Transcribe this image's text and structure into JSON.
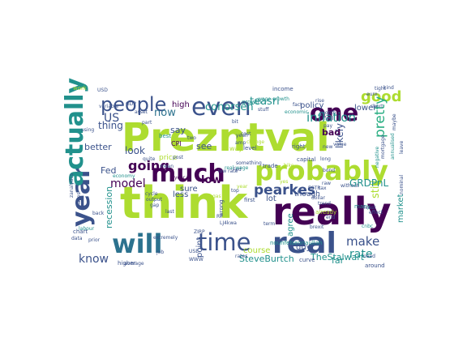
{
  "palette": {
    "dark_purple": "#440154",
    "indigo": "#3b528b",
    "slate_blue": "#2c728e",
    "teal": "#21918c",
    "green_teal": "#27ad81",
    "green": "#5ec962",
    "lime": "#addc30",
    "yellow": "#fde725"
  },
  "words": [
    {
      "text": "Prezntval",
      "color": "lime"
    },
    {
      "text": "think",
      "color": "lime"
    },
    {
      "text": "really",
      "color": "dark_purple"
    },
    {
      "text": "will",
      "color": "slate_blue"
    },
    {
      "text": "real",
      "color": "indigo"
    },
    {
      "text": "time",
      "color": "indigo"
    },
    {
      "text": "probably",
      "color": "lime"
    },
    {
      "text": "much",
      "color": "dark_purple"
    },
    {
      "text": "year",
      "color": "indigo"
    },
    {
      "text": "actually",
      "color": "teal"
    },
    {
      "text": "even",
      "color": "indigo"
    },
    {
      "text": "one",
      "color": "dark_purple"
    },
    {
      "text": "people",
      "color": "indigo"
    },
    {
      "text": "good",
      "color": "lime"
    },
    {
      "text": "pearkes",
      "color": "indigo"
    },
    {
      "text": "going",
      "color": "dark_purple"
    },
    {
      "text": "pretty",
      "color": "green_teal"
    },
    {
      "text": "inflation",
      "color": "teal"
    },
    {
      "text": "teasri",
      "color": "teal"
    },
    {
      "text": "conorsen",
      "color": "teal"
    },
    {
      "text": "model",
      "color": "dark_purple"
    },
    {
      "text": "low",
      "color": "dark_purple"
    },
    {
      "text": "make",
      "color": "indigo"
    },
    {
      "text": "rate",
      "color": "teal"
    },
    {
      "text": "know",
      "color": "indigo"
    },
    {
      "text": "still",
      "color": "lime"
    },
    {
      "text": "GRDPnL",
      "color": "teal"
    },
    {
      "text": "now",
      "color": "slate_blue"
    },
    {
      "text": "US",
      "color": "indigo"
    },
    {
      "text": "thing",
      "color": "indigo"
    },
    {
      "text": "look",
      "color": "indigo"
    },
    {
      "text": "likely",
      "color": "indigo"
    },
    {
      "text": "SteveBurtch",
      "color": "teal"
    },
    {
      "text": "TheStalwart",
      "color": "teal"
    },
    {
      "text": "recession",
      "color": "teal"
    },
    {
      "text": "lower",
      "color": "indigo"
    },
    {
      "text": "policy",
      "color": "indigo"
    },
    {
      "text": "market",
      "color": "teal"
    },
    {
      "text": "bad",
      "color": "dark_purple"
    },
    {
      "text": "say",
      "color": "indigo"
    },
    {
      "text": "see",
      "color": "indigo"
    },
    {
      "text": "sure",
      "color": "indigo"
    },
    {
      "text": "less",
      "color": "indigo"
    },
    {
      "text": "better",
      "color": "indigo"
    },
    {
      "text": "high",
      "color": "dark_purple"
    },
    {
      "text": "Fed",
      "color": "indigo"
    },
    {
      "text": "lot",
      "color": "indigo"
    },
    {
      "text": "course",
      "color": "lime"
    },
    {
      "text": "far",
      "color": "teal"
    },
    {
      "text": "point",
      "color": "indigo"
    },
    {
      "text": "price",
      "color": "lime"
    },
    {
      "text": "agree",
      "color": "teal"
    },
    {
      "text": "though",
      "color": "indigo"
    },
    {
      "text": "around",
      "color": "indigo"
    },
    {
      "text": "CPI",
      "color": "dark_purple"
    },
    {
      "text": "guy",
      "color": "indigo"
    },
    {
      "text": "growth",
      "color": "teal"
    },
    {
      "text": "trade",
      "color": "indigo"
    },
    {
      "text": "wage growth",
      "color": "teal"
    },
    {
      "text": "economic",
      "color": "teal"
    },
    {
      "text": "income",
      "color": "indigo"
    },
    {
      "text": "economy",
      "color": "teal"
    },
    {
      "text": "way",
      "color": "lime"
    },
    {
      "text": "best",
      "color": "teal"
    },
    {
      "text": "level",
      "color": "indigo"
    },
    {
      "text": "right",
      "color": "indigo"
    },
    {
      "text": "capital",
      "color": "indigo"
    },
    {
      "text": "already",
      "color": "lime"
    },
    {
      "text": "work",
      "color": "lime"
    },
    {
      "text": "USD",
      "color": "indigo"
    },
    {
      "text": "GDP",
      "color": "indigo"
    },
    {
      "text": "asset",
      "color": "indigo"
    },
    {
      "text": "first",
      "color": "indigo"
    },
    {
      "text": "without",
      "color": "indigo"
    },
    {
      "text": "higher",
      "color": "indigo"
    },
    {
      "text": "average",
      "color": "indigo"
    },
    {
      "text": "last",
      "color": "indigo"
    },
    {
      "text": "job",
      "color": "indigo"
    },
    {
      "text": "data",
      "color": "indigo"
    },
    {
      "text": "chart",
      "color": "indigo"
    },
    {
      "text": "change",
      "color": "lime"
    },
    {
      "text": "something",
      "color": "indigo"
    },
    {
      "text": "kind",
      "color": "indigo"
    },
    {
      "text": "mean",
      "color": "indigo"
    },
    {
      "text": "term",
      "color": "indigo"
    },
    {
      "text": "labour",
      "color": "teal"
    },
    {
      "text": "value",
      "color": "indigo"
    },
    {
      "text": "many",
      "color": "teal"
    },
    {
      "text": "using",
      "color": "indigo"
    },
    {
      "text": "wrong",
      "color": "indigo"
    },
    {
      "text": "maybe",
      "color": "indigo"
    },
    {
      "text": "need",
      "color": "indigo"
    },
    {
      "text": "new",
      "color": "indigo"
    },
    {
      "text": "back",
      "color": "indigo"
    },
    {
      "text": "two",
      "color": "indigo"
    },
    {
      "text": "variable",
      "color": "indigo"
    },
    {
      "text": "nounfelsennaullah",
      "color": "teal"
    },
    {
      "text": "zanalytics",
      "color": "indigo"
    },
    {
      "text": "extremely",
      "color": "indigo"
    },
    {
      "text": "ZIRP",
      "color": "indigo"
    },
    {
      "text": "prior",
      "color": "indigo"
    },
    {
      "text": "least",
      "color": "indigo"
    },
    {
      "text": "effect",
      "color": "indigo"
    },
    {
      "text": "curve",
      "color": "indigo"
    },
    {
      "text": "trend",
      "color": "indigo"
    },
    {
      "text": "year",
      "color": "dark_purple"
    },
    {
      "text": "post",
      "color": "indigo"
    },
    {
      "text": "part",
      "color": "indigo"
    },
    {
      "text": "bit",
      "color": "indigo"
    },
    {
      "text": "cost",
      "color": "indigo"
    },
    {
      "text": "yeah",
      "color": "indigo"
    },
    {
      "text": "amp",
      "color": "indigo"
    },
    {
      "text": "RT",
      "color": "indigo"
    },
    {
      "text": "LJ4kwa",
      "color": "indigo"
    },
    {
      "text": "quite",
      "color": "indigo"
    },
    {
      "text": "hike",
      "color": "lime"
    },
    {
      "text": "Fed",
      "color": "indigo"
    },
    {
      "text": "bond",
      "color": "indigo"
    },
    {
      "text": "end",
      "color": "indigo"
    },
    {
      "text": "yes",
      "color": "lime"
    },
    {
      "text": "long",
      "color": "indigo"
    },
    {
      "text": "tax",
      "color": "indigo"
    },
    {
      "text": "top",
      "color": "indigo"
    },
    {
      "text": "rates",
      "color": "indigo"
    },
    {
      "text": "real wage",
      "color": "teal"
    },
    {
      "text": "low rate",
      "color": "indigo"
    },
    {
      "text": "dollar",
      "color": "indigo"
    },
    {
      "text": "ESTR",
      "color": "indigo"
    },
    {
      "text": "WWW",
      "color": "indigo"
    },
    {
      "text": "USE",
      "color": "indigo"
    },
    {
      "text": "year",
      "color": "lime"
    },
    {
      "text": "cnbc",
      "color": "teal"
    },
    {
      "text": "brexit",
      "color": "indigo"
    },
    {
      "text": "stuff",
      "color": "indigo"
    },
    {
      "text": "fact",
      "color": "indigo"
    },
    {
      "text": "rise",
      "color": "indigo"
    },
    {
      "text": "month",
      "color": "indigo"
    },
    {
      "text": "feel",
      "color": "indigo"
    },
    {
      "text": "pay",
      "color": "indigo"
    },
    {
      "text": "gas",
      "color": "lime"
    },
    {
      "text": "raw",
      "color": "indigo"
    },
    {
      "text": "annualised",
      "color": "teal"
    },
    {
      "text": "leave",
      "color": "indigo"
    },
    {
      "text": "negative",
      "color": "teal"
    },
    {
      "text": "makes",
      "color": "indigo"
    },
    {
      "text": "mortgage",
      "color": "indigo"
    },
    {
      "text": "cycle",
      "color": "indigo"
    },
    {
      "text": "output",
      "color": "indigo"
    },
    {
      "text": "gap",
      "color": "indigo"
    },
    {
      "text": "tight",
      "color": "indigo"
    },
    {
      "text": "euro",
      "color": "indigo"
    },
    {
      "text": "short",
      "color": "indigo"
    },
    {
      "text": "nominal",
      "color": "indigo"
    }
  ]
}
